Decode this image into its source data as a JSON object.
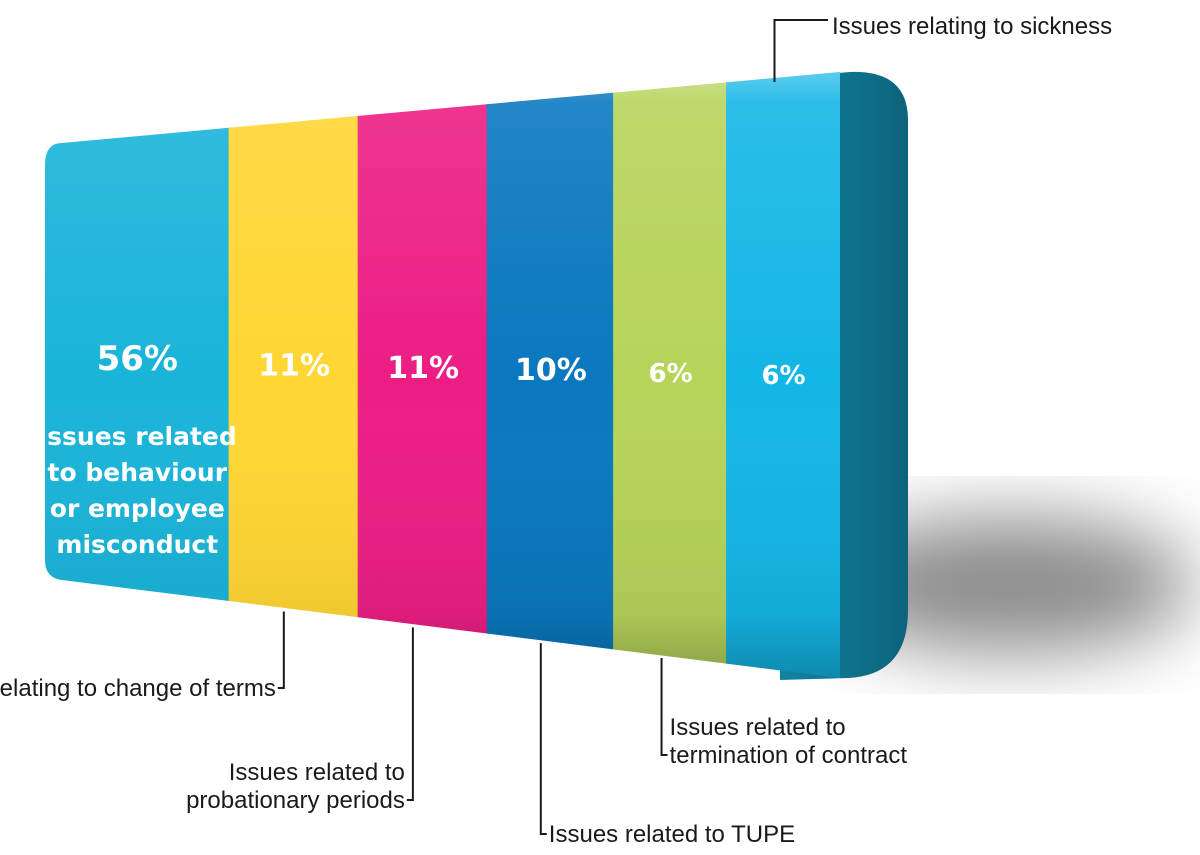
{
  "chart_data": {
    "type": "bar",
    "variant": "stacked-100-percent-3d",
    "categories": [
      "Issues related to behaviour or employee misconduct",
      "Issues relating to change of terms",
      "Issues related to probationary periods",
      "Issues related to TUPE",
      "Issues related to termination of contract",
      "Issues relating to sickness"
    ],
    "values": [
      56,
      11,
      11,
      10,
      6,
      6
    ],
    "value_labels": [
      "56%",
      "11%",
      "11%",
      "10%",
      "6%",
      "6%"
    ],
    "colors": [
      "#1ab4d9",
      "#ffd633",
      "#ec1e84",
      "#0a78bf",
      "#b6d35a",
      "#14b6e6"
    ],
    "end_cap_color": "#1184a3",
    "main_label_lines": [
      "Issues related",
      "to behaviour",
      "or employee",
      "misconduct"
    ],
    "callouts": [
      {
        "segment": 1,
        "lines": [
          "Issues relating to change of terms"
        ]
      },
      {
        "segment": 2,
        "lines": [
          "Issues related to",
          "probationary periods"
        ]
      },
      {
        "segment": 3,
        "lines": [
          "Issues related to TUPE"
        ]
      },
      {
        "segment": 4,
        "lines": [
          "Issues related to",
          "termination of contract"
        ]
      },
      {
        "segment": 5,
        "lines": [
          "Issues relating to sickness"
        ]
      }
    ],
    "title": "",
    "xlabel": "",
    "ylabel": "",
    "legend": "none",
    "grid": false
  }
}
